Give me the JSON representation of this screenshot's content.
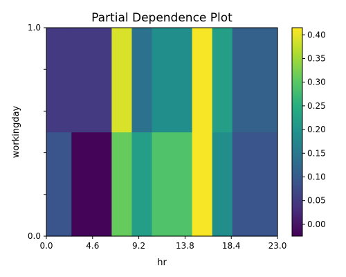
{
  "chart_data": {
    "type": "heatmap",
    "title": "Partial Dependence Plot",
    "xlabel": "hr",
    "ylabel": "workingday",
    "x_edges": [
      0,
      2.5,
      6.5,
      8.5,
      10.5,
      14.5,
      16.5,
      18.5,
      20.5,
      23
    ],
    "y_edges": [
      0,
      0.5,
      1
    ],
    "x_ticks": [
      0,
      4.6,
      9.2,
      13.8,
      18.4,
      23
    ],
    "x_tick_labels": [
      "0.0",
      "4.6",
      "9.2",
      "13.8",
      "18.4",
      "23.0"
    ],
    "y_ticks": [
      0,
      0.2,
      0.4,
      0.6,
      0.8,
      1
    ],
    "y_tick_labels": [
      "0.0",
      "",
      "",
      "",
      "",
      "1.0"
    ],
    "xlim": [
      0,
      23
    ],
    "ylim": [
      0,
      1
    ],
    "rows": [
      {
        "workingday": 0,
        "values": [
          0.09,
          -0.02,
          0.31,
          0.22,
          0.29,
          0.41,
          0.19,
          0.09,
          0.09
        ]
      },
      {
        "workingday": 1,
        "values": [
          0.05,
          0.05,
          0.39,
          0.14,
          0.19,
          0.41,
          0.22,
          0.11,
          0.11
        ]
      }
    ],
    "colormap": "viridis",
    "colorbar": {
      "vmin": -0.025,
      "vmax": 0.415,
      "ticks": [
        0.0,
        0.05,
        0.1,
        0.15,
        0.2,
        0.25,
        0.3,
        0.35,
        0.4
      ],
      "tick_labels": [
        "0.00",
        "0.05",
        "0.10",
        "0.15",
        "0.20",
        "0.25",
        "0.30",
        "0.35",
        "0.40"
      ]
    },
    "grid": false,
    "legend": "colorbar-right"
  }
}
